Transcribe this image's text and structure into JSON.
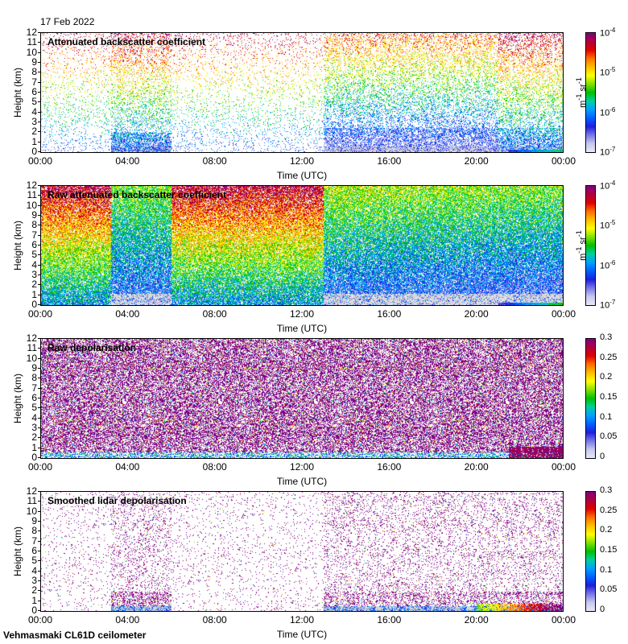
{
  "date": "17 Feb 2022",
  "footer": "Vehmasmaki CL61D ceilometer",
  "chart_data": [
    {
      "type": "heatmap",
      "title": "Attenuated backscatter coefficient",
      "ylabel": "Height (km)",
      "xlabel": "Time (UTC)",
      "x_ticks": [
        "00:00",
        "04:00",
        "08:00",
        "12:00",
        "16:00",
        "20:00",
        "00:00"
      ],
      "y_ticks": [
        "0",
        "1",
        "2",
        "3",
        "4",
        "5",
        "6",
        "7",
        "8",
        "9",
        "10",
        "11",
        "12"
      ],
      "ylim": [
        0,
        12
      ],
      "xlim_hours": [
        0,
        24
      ],
      "colorbar": {
        "scale": "log",
        "range": [
          1e-07,
          0.0001
        ],
        "labels": [
          "10-7",
          "10-6",
          "10-5",
          "10-4"
        ],
        "unit": "m-1 sr-1"
      }
    },
    {
      "type": "heatmap",
      "title": "Raw attenuated backscatter coefficient",
      "ylabel": "Height (km)",
      "xlabel": "Time (UTC)",
      "x_ticks": [
        "00:00",
        "04:00",
        "08:00",
        "12:00",
        "16:00",
        "20:00",
        "00:00"
      ],
      "y_ticks": [
        "0",
        "1",
        "2",
        "3",
        "4",
        "5",
        "6",
        "7",
        "8",
        "9",
        "10",
        "11",
        "12"
      ],
      "ylim": [
        0,
        12
      ],
      "xlim_hours": [
        0,
        24
      ],
      "colorbar": {
        "scale": "log",
        "range": [
          1e-07,
          0.0001
        ],
        "labels": [
          "10-7",
          "10-6",
          "10-5",
          "10-4"
        ],
        "unit": "m-1 sr-1"
      }
    },
    {
      "type": "heatmap",
      "title": "Raw depolarisation",
      "ylabel": "Height (km)",
      "xlabel": "Time (UTC)",
      "x_ticks": [
        "00:00",
        "04:00",
        "08:00",
        "12:00",
        "16:00",
        "20:00",
        "00:00"
      ],
      "y_ticks": [
        "0",
        "1",
        "2",
        "3",
        "4",
        "5",
        "6",
        "7",
        "8",
        "9",
        "10",
        "11",
        "12"
      ],
      "ylim": [
        0,
        12
      ],
      "xlim_hours": [
        0,
        24
      ],
      "colorbar": {
        "scale": "linear",
        "range": [
          0,
          0.3
        ],
        "labels": [
          "0",
          "0.05",
          "0.1",
          "0.15",
          "0.2",
          "0.25",
          "0.3"
        ],
        "unit": ""
      }
    },
    {
      "type": "heatmap",
      "title": "Smoothed lidar depolarisation",
      "ylabel": "Height (km)",
      "xlabel": "Time (UTC)",
      "x_ticks": [
        "00:00",
        "04:00",
        "08:00",
        "12:00",
        "16:00",
        "20:00",
        "00:00"
      ],
      "y_ticks": [
        "0",
        "1",
        "2",
        "3",
        "4",
        "5",
        "6",
        "7",
        "8",
        "9",
        "10",
        "11",
        "12"
      ],
      "ylim": [
        0,
        12
      ],
      "xlim_hours": [
        0,
        24
      ],
      "colorbar": {
        "scale": "linear",
        "range": [
          0,
          0.3
        ],
        "labels": [
          "0",
          "0.05",
          "0.1",
          "0.15",
          "0.2",
          "0.25",
          "0.3"
        ],
        "unit": ""
      }
    }
  ],
  "colormap": [
    "#e8e8f8",
    "#c8c8f0",
    "#7878e8",
    "#1e1edc",
    "#0060ff",
    "#00a0ff",
    "#00d0a0",
    "#00c000",
    "#80e000",
    "#ffff00",
    "#ffc000",
    "#ff7000",
    "#e00000",
    "#b00040",
    "#800080"
  ]
}
